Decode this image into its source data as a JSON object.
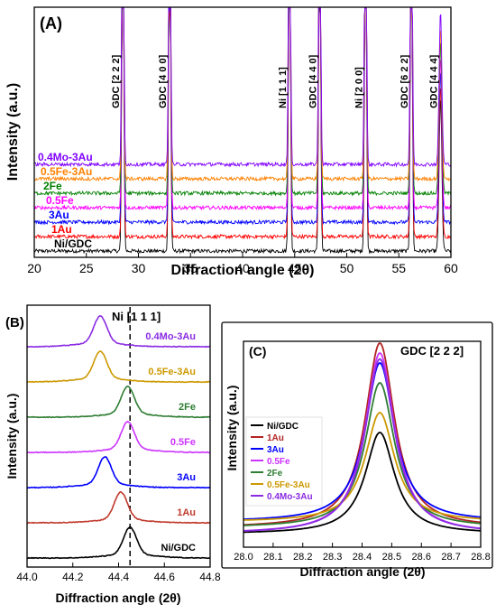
{
  "panels": {
    "A": {
      "letter": "(A)"
    },
    "B": {
      "letter": "(B)"
    },
    "C": {
      "letter": "(C)"
    }
  },
  "chart_data": [
    {
      "id": "A",
      "type": "line",
      "title": "",
      "xlabel": "Diffraction angle (2θ)",
      "ylabel": "Intensity (a.u.)",
      "xlim": [
        20,
        60
      ],
      "xticks": [
        20,
        25,
        30,
        35,
        40,
        45,
        50,
        55,
        60
      ],
      "grid": false,
      "series": [
        {
          "name": "Ni/GDC",
          "color": "#000000",
          "offset": 0
        },
        {
          "name": "1Au",
          "color": "#ff0000",
          "offset": 1
        },
        {
          "name": "3Au",
          "color": "#0000ff",
          "offset": 2
        },
        {
          "name": "0.5Fe",
          "color": "#ff00ff",
          "offset": 3
        },
        {
          "name": "2Fe",
          "color": "#008000",
          "offset": 4
        },
        {
          "name": "0.5Fe-3Au",
          "color": "#ff8000",
          "offset": 5
        },
        {
          "name": "0.4Mo-3Au",
          "color": "#8000ff",
          "offset": 6
        }
      ],
      "peaks": [
        {
          "label": "GDC [2 2 2]",
          "x": 28.5
        },
        {
          "label": "GDC [4 0 0]",
          "x": 33.0
        },
        {
          "label": "Ni [1 1 1]",
          "x": 44.5
        },
        {
          "label": "GDC [4 4 0]",
          "x": 47.4
        },
        {
          "label": "Ni [2 0 0]",
          "x": 51.8
        },
        {
          "label": "GDC [6 2 2]",
          "x": 56.2
        },
        {
          "label": "GDC [4 4 4]",
          "x": 59.0
        }
      ]
    },
    {
      "id": "B",
      "type": "line",
      "title": "",
      "xlabel": "Diffraction angle (2θ)",
      "ylabel": "Intensity (a.u.)",
      "xlim": [
        44.0,
        44.8
      ],
      "xticks": [
        44.0,
        44.2,
        44.4,
        44.6,
        44.8
      ],
      "reference_line": {
        "label": "Ni [1 1 1]",
        "x": 44.45
      },
      "series": [
        {
          "name": "Ni/GDC",
          "color": "#000000",
          "center": 44.45
        },
        {
          "name": "1Au",
          "color": "#c0392b",
          "center": 44.41
        },
        {
          "name": "3Au",
          "color": "#0000ff",
          "center": 44.34
        },
        {
          "name": "0.5Fe",
          "color": "#cc33ff",
          "center": 44.44
        },
        {
          "name": "2Fe",
          "color": "#2e7d32",
          "center": 44.44
        },
        {
          "name": "0.5Fe-3Au",
          "color": "#cc9900",
          "center": 44.32
        },
        {
          "name": "0.4Mo-3Au",
          "color": "#8a2be2",
          "center": 44.32
        }
      ]
    },
    {
      "id": "C",
      "type": "line",
      "title": "GDC [2 2 2]",
      "xlabel": "Diffraction angle (2θ)",
      "ylabel": "Intensity (a.u.)",
      "xlim": [
        28.0,
        28.8
      ],
      "xticks": [
        28.0,
        28.1,
        28.2,
        28.3,
        28.4,
        28.5,
        28.6,
        28.7,
        28.8
      ],
      "legend": "left",
      "series": [
        {
          "name": "Ni/GDC",
          "color": "#000000",
          "peak": 0.55
        },
        {
          "name": "1Au",
          "color": "#b22222",
          "peak": 1.0
        },
        {
          "name": "3Au",
          "color": "#0000ff",
          "peak": 0.9
        },
        {
          "name": "0.5Fe",
          "color": "#cc33ff",
          "peak": 0.95
        },
        {
          "name": "2Fe",
          "color": "#2e7d32",
          "peak": 0.8
        },
        {
          "name": "0.5Fe-3Au",
          "color": "#cc9900",
          "peak": 0.65
        },
        {
          "name": "0.4Mo-3Au",
          "color": "#8a2be2",
          "peak": 0.92
        }
      ]
    }
  ]
}
